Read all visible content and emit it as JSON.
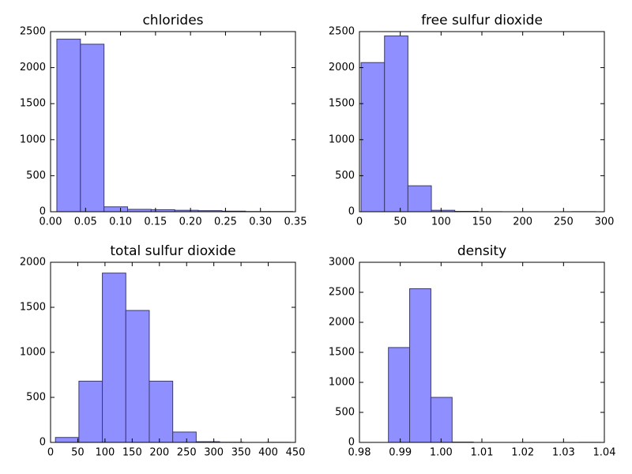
{
  "chart_data": [
    {
      "type": "histogram",
      "title": "chlorides",
      "color": "#8f8fff",
      "edgecolor": "#3a3a6e",
      "bins": [
        0.009,
        0.0427,
        0.0764,
        0.1101,
        0.1438,
        0.1775,
        0.2112,
        0.2449,
        0.2786,
        0.3123,
        0.346
      ],
      "values": [
        2395,
        2325,
        68,
        33,
        28,
        20,
        15,
        8,
        3,
        3
      ],
      "xlim": [
        0,
        0.35
      ],
      "ylim": [
        0,
        2500
      ],
      "xticks": [
        {
          "value": 0,
          "label": "0.00"
        },
        0.05,
        {
          "value": 0.1,
          "label": "0.10"
        },
        0.15,
        {
          "value": 0.2,
          "label": "0.20"
        },
        0.25,
        {
          "value": 0.3,
          "label": "0.30"
        },
        0.35
      ],
      "yticks": [
        0,
        500,
        1000,
        1500,
        2000,
        2500
      ]
    },
    {
      "type": "histogram",
      "title": "free sulfur dioxide",
      "color": "#8f8fff",
      "edgecolor": "#3a3a6e",
      "bins": [
        2,
        30.7,
        59.4,
        88.1,
        116.8,
        145.5,
        174.2,
        202.9,
        231.6,
        260.3,
        289
      ],
      "values": [
        2070,
        2440,
        360,
        20,
        5,
        1,
        0,
        0,
        0,
        1
      ],
      "xlim": [
        0,
        300
      ],
      "ylim": [
        0,
        2500
      ],
      "xticks": [
        0,
        50,
        100,
        150,
        200,
        250,
        300
      ],
      "yticks": [
        0,
        500,
        1000,
        1500,
        2000,
        2500
      ]
    },
    {
      "type": "histogram",
      "title": "total sulfur dioxide",
      "color": "#8f8fff",
      "edgecolor": "#3a3a6e",
      "bins": [
        9,
        52.1,
        95.2,
        138.3,
        181.4,
        224.5,
        267.6,
        310.7,
        353.8,
        396.9,
        440
      ],
      "values": [
        55,
        680,
        1880,
        1465,
        680,
        115,
        8,
        2,
        0,
        1
      ],
      "xlim": [
        0,
        450
      ],
      "ylim": [
        0,
        2000
      ],
      "xticks": [
        0,
        50,
        100,
        150,
        200,
        250,
        300,
        350,
        400,
        450
      ],
      "yticks": [
        0,
        500,
        1000,
        1500,
        2000
      ]
    },
    {
      "type": "histogram",
      "title": "density",
      "color": "#8f8fff",
      "edgecolor": "#3a3a6e",
      "bins": [
        0.9871,
        0.9923,
        0.9975,
        1.0027,
        1.0079,
        1.013,
        1.0182,
        1.0234,
        1.0286,
        1.0338,
        1.039
      ],
      "values": [
        1580,
        2560,
        750,
        5,
        0,
        0,
        0,
        0,
        0,
        1
      ],
      "xlim": [
        0.98,
        1.04
      ],
      "ylim": [
        0,
        3000
      ],
      "xticks": [
        0.98,
        0.99,
        {
          "value": 1,
          "label": "1.00"
        },
        1.01,
        1.02,
        1.03,
        1.04
      ],
      "yticks": [
        0,
        500,
        1000,
        1500,
        2000,
        2500,
        3000
      ]
    }
  ]
}
